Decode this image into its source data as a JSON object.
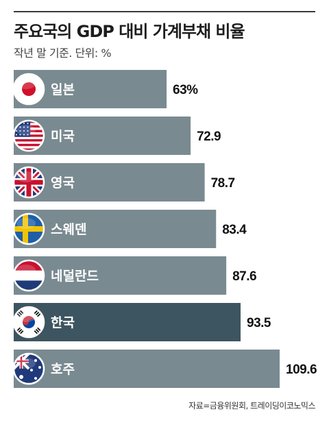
{
  "title": "주요국의 GDP 대비 가계부채 비율",
  "subtitle": "작년 말 기준. 단위: %",
  "source": "자료=금융위원회, 트레이딩이코노믹스",
  "colors": {
    "bar": "#7a8a91",
    "bar_highlight": "#3d5560",
    "bar_label": "#ffffff",
    "value_label": "#111111"
  },
  "chart_data": {
    "type": "bar",
    "orientation": "horizontal",
    "title": "주요국의 GDP 대비 가계부채 비율",
    "subtitle": "작년 말 기준. 단위: %",
    "categories": [
      "일본",
      "미국",
      "영국",
      "스웨덴",
      "네덜란드",
      "한국",
      "호주"
    ],
    "values": [
      63,
      72.9,
      78.7,
      83.4,
      87.6,
      93.5,
      109.6
    ],
    "value_labels": [
      "63%",
      "72.9",
      "78.7",
      "83.4",
      "87.6",
      "93.5",
      "109.6"
    ],
    "flags": [
      "japan-flag-icon",
      "usa-flag-icon",
      "uk-flag-icon",
      "sweden-flag-icon",
      "netherlands-flag-icon",
      "korea-flag-icon",
      "australia-flag-icon"
    ],
    "highlight": "한국",
    "grid": false,
    "legend": "none"
  }
}
